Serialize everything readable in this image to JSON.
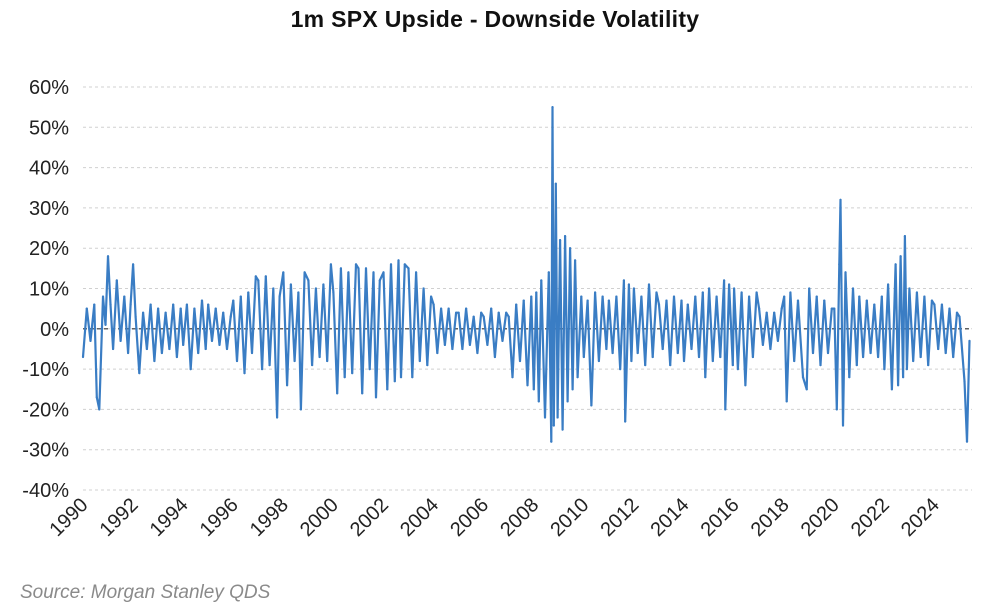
{
  "chart_data": {
    "type": "line",
    "title": "1m SPX Upside - Downside Volatility",
    "source": "Source: Morgan Stanley QDS",
    "xlabel": "",
    "ylabel": "",
    "ylim": [
      -40,
      60
    ],
    "xlim": [
      1990,
      2025.5
    ],
    "y_ticks": [
      60,
      50,
      40,
      30,
      20,
      10,
      0,
      -10,
      -20,
      -30,
      -40
    ],
    "y_tick_labels": [
      "60%",
      "50%",
      "40%",
      "30%",
      "20%",
      "10%",
      "0%",
      "-10%",
      "-20%",
      "-30%",
      "-40%"
    ],
    "x_ticks": [
      1990,
      1992,
      1994,
      1996,
      1998,
      2000,
      2002,
      2004,
      2006,
      2008,
      2010,
      2012,
      2014,
      2016,
      2018,
      2020,
      2022,
      2024
    ],
    "x_tick_labels": [
      "1990",
      "1992",
      "1994",
      "1996",
      "1998",
      "2000",
      "2002",
      "2004",
      "2006",
      "2008",
      "2010",
      "2012",
      "2014",
      "2016",
      "2018",
      "2020",
      "2022",
      "2024"
    ],
    "grid": true,
    "series": [
      {
        "name": "1m SPX Upside - Downside Volatility",
        "color": "#3a7dc4",
        "points": [
          [
            1990.0,
            -7
          ],
          [
            1990.15,
            5
          ],
          [
            1990.3,
            -3
          ],
          [
            1990.45,
            6
          ],
          [
            1990.55,
            -17
          ],
          [
            1990.65,
            -20
          ],
          [
            1990.8,
            8
          ],
          [
            1990.9,
            1
          ],
          [
            1991.0,
            18
          ],
          [
            1991.1,
            6
          ],
          [
            1991.2,
            -5
          ],
          [
            1991.35,
            12
          ],
          [
            1991.5,
            -3
          ],
          [
            1991.65,
            8
          ],
          [
            1991.8,
            -6
          ],
          [
            1991.9,
            6
          ],
          [
            1992.0,
            16
          ],
          [
            1992.1,
            3
          ],
          [
            1992.25,
            -11
          ],
          [
            1992.4,
            4
          ],
          [
            1992.55,
            -5
          ],
          [
            1992.7,
            6
          ],
          [
            1992.85,
            -8
          ],
          [
            1993.0,
            5
          ],
          [
            1993.15,
            -6
          ],
          [
            1993.3,
            4
          ],
          [
            1993.45,
            -5
          ],
          [
            1993.6,
            6
          ],
          [
            1993.75,
            -7
          ],
          [
            1993.9,
            5
          ],
          [
            1994.0,
            -4
          ],
          [
            1994.15,
            6
          ],
          [
            1994.3,
            -10
          ],
          [
            1994.45,
            5
          ],
          [
            1994.6,
            -6
          ],
          [
            1994.75,
            7
          ],
          [
            1994.9,
            -5
          ],
          [
            1995.0,
            6
          ],
          [
            1995.15,
            -3
          ],
          [
            1995.3,
            5
          ],
          [
            1995.45,
            -4
          ],
          [
            1995.6,
            4
          ],
          [
            1995.75,
            -5
          ],
          [
            1995.9,
            3
          ],
          [
            1996.0,
            7
          ],
          [
            1996.15,
            -8
          ],
          [
            1996.3,
            8
          ],
          [
            1996.45,
            -11
          ],
          [
            1996.6,
            9
          ],
          [
            1996.75,
            -6
          ],
          [
            1996.9,
            13
          ],
          [
            1997.0,
            12
          ],
          [
            1997.15,
            -10
          ],
          [
            1997.3,
            13
          ],
          [
            1997.45,
            -9
          ],
          [
            1997.6,
            10
          ],
          [
            1997.75,
            -22
          ],
          [
            1997.85,
            8
          ],
          [
            1998.0,
            14
          ],
          [
            1998.15,
            -14
          ],
          [
            1998.3,
            11
          ],
          [
            1998.45,
            -8
          ],
          [
            1998.6,
            9
          ],
          [
            1998.7,
            -20
          ],
          [
            1998.85,
            14
          ],
          [
            1999.0,
            12
          ],
          [
            1999.15,
            -9
          ],
          [
            1999.3,
            10
          ],
          [
            1999.45,
            -7
          ],
          [
            1999.6,
            11
          ],
          [
            1999.75,
            -8
          ],
          [
            1999.9,
            16
          ],
          [
            2000.0,
            9
          ],
          [
            2000.15,
            -16
          ],
          [
            2000.3,
            15
          ],
          [
            2000.45,
            -12
          ],
          [
            2000.6,
            14
          ],
          [
            2000.75,
            -11
          ],
          [
            2000.9,
            16
          ],
          [
            2001.0,
            15
          ],
          [
            2001.15,
            -16
          ],
          [
            2001.3,
            15
          ],
          [
            2001.45,
            -10
          ],
          [
            2001.6,
            14
          ],
          [
            2001.7,
            -17
          ],
          [
            2001.85,
            12
          ],
          [
            2002.0,
            14
          ],
          [
            2002.15,
            -15
          ],
          [
            2002.3,
            16
          ],
          [
            2002.45,
            -13
          ],
          [
            2002.6,
            17
          ],
          [
            2002.7,
            -12
          ],
          [
            2002.85,
            16
          ],
          [
            2003.0,
            15
          ],
          [
            2003.15,
            -12
          ],
          [
            2003.3,
            14
          ],
          [
            2003.45,
            -8
          ],
          [
            2003.6,
            10
          ],
          [
            2003.75,
            -9
          ],
          [
            2003.9,
            8
          ],
          [
            2004.0,
            6
          ],
          [
            2004.15,
            -6
          ],
          [
            2004.3,
            5
          ],
          [
            2004.45,
            -4
          ],
          [
            2004.6,
            5
          ],
          [
            2004.75,
            -5
          ],
          [
            2004.9,
            4
          ],
          [
            2005.0,
            4
          ],
          [
            2005.15,
            -5
          ],
          [
            2005.3,
            5
          ],
          [
            2005.45,
            -4
          ],
          [
            2005.6,
            3
          ],
          [
            2005.75,
            -6
          ],
          [
            2005.9,
            4
          ],
          [
            2006.0,
            3
          ],
          [
            2006.15,
            -4
          ],
          [
            2006.3,
            5
          ],
          [
            2006.45,
            -7
          ],
          [
            2006.6,
            4
          ],
          [
            2006.75,
            -3
          ],
          [
            2006.9,
            4
          ],
          [
            2007.0,
            3
          ],
          [
            2007.15,
            -12
          ],
          [
            2007.3,
            6
          ],
          [
            2007.45,
            -8
          ],
          [
            2007.6,
            7
          ],
          [
            2007.75,
            -14
          ],
          [
            2007.9,
            8
          ],
          [
            2008.0,
            -15
          ],
          [
            2008.1,
            9
          ],
          [
            2008.2,
            -18
          ],
          [
            2008.3,
            12
          ],
          [
            2008.45,
            -22
          ],
          [
            2008.6,
            14
          ],
          [
            2008.7,
            -28
          ],
          [
            2008.75,
            55
          ],
          [
            2008.8,
            -24
          ],
          [
            2008.88,
            36
          ],
          [
            2008.95,
            -22
          ],
          [
            2009.05,
            22
          ],
          [
            2009.15,
            -25
          ],
          [
            2009.25,
            23
          ],
          [
            2009.35,
            -18
          ],
          [
            2009.45,
            20
          ],
          [
            2009.55,
            -15
          ],
          [
            2009.65,
            17
          ],
          [
            2009.75,
            -12
          ],
          [
            2009.9,
            8
          ],
          [
            2010.0,
            -7
          ],
          [
            2010.15,
            7
          ],
          [
            2010.3,
            -19
          ],
          [
            2010.45,
            9
          ],
          [
            2010.6,
            -8
          ],
          [
            2010.75,
            8
          ],
          [
            2010.9,
            -5
          ],
          [
            2011.0,
            7
          ],
          [
            2011.15,
            -6
          ],
          [
            2011.3,
            8
          ],
          [
            2011.45,
            -10
          ],
          [
            2011.6,
            12
          ],
          [
            2011.65,
            -23
          ],
          [
            2011.8,
            11
          ],
          [
            2011.9,
            -8
          ],
          [
            2012.0,
            10
          ],
          [
            2012.15,
            -6
          ],
          [
            2012.3,
            8
          ],
          [
            2012.45,
            -9
          ],
          [
            2012.6,
            11
          ],
          [
            2012.75,
            -7
          ],
          [
            2012.9,
            9
          ],
          [
            2013.0,
            6
          ],
          [
            2013.15,
            -5
          ],
          [
            2013.3,
            7
          ],
          [
            2013.45,
            -9
          ],
          [
            2013.6,
            8
          ],
          [
            2013.75,
            -6
          ],
          [
            2013.9,
            7
          ],
          [
            2014.0,
            -8
          ],
          [
            2014.15,
            6
          ],
          [
            2014.3,
            -5
          ],
          [
            2014.45,
            8
          ],
          [
            2014.6,
            -7
          ],
          [
            2014.75,
            9
          ],
          [
            2014.85,
            -12
          ],
          [
            2015.0,
            10
          ],
          [
            2015.15,
            -8
          ],
          [
            2015.3,
            8
          ],
          [
            2015.45,
            -7
          ],
          [
            2015.6,
            12
          ],
          [
            2015.65,
            -20
          ],
          [
            2015.8,
            11
          ],
          [
            2015.95,
            -9
          ],
          [
            2016.0,
            10
          ],
          [
            2016.15,
            -10
          ],
          [
            2016.3,
            9
          ],
          [
            2016.45,
            -14
          ],
          [
            2016.6,
            8
          ],
          [
            2016.75,
            -7
          ],
          [
            2016.9,
            9
          ],
          [
            2017.0,
            5
          ],
          [
            2017.15,
            -4
          ],
          [
            2017.3,
            4
          ],
          [
            2017.45,
            -5
          ],
          [
            2017.6,
            4
          ],
          [
            2017.75,
            -3
          ],
          [
            2017.9,
            5
          ],
          [
            2018.0,
            8
          ],
          [
            2018.1,
            -18
          ],
          [
            2018.25,
            9
          ],
          [
            2018.4,
            -8
          ],
          [
            2018.55,
            7
          ],
          [
            2018.75,
            -12
          ],
          [
            2018.9,
            -15
          ],
          [
            2019.0,
            10
          ],
          [
            2019.15,
            -6
          ],
          [
            2019.3,
            8
          ],
          [
            2019.45,
            -9
          ],
          [
            2019.6,
            7
          ],
          [
            2019.75,
            -6
          ],
          [
            2019.9,
            5
          ],
          [
            2020.0,
            5
          ],
          [
            2020.1,
            -20
          ],
          [
            2020.2,
            16
          ],
          [
            2020.25,
            32
          ],
          [
            2020.35,
            -24
          ],
          [
            2020.45,
            14
          ],
          [
            2020.6,
            -12
          ],
          [
            2020.75,
            10
          ],
          [
            2020.9,
            -9
          ],
          [
            2021.0,
            8
          ],
          [
            2021.15,
            -7
          ],
          [
            2021.3,
            7
          ],
          [
            2021.45,
            -6
          ],
          [
            2021.6,
            6
          ],
          [
            2021.75,
            -7
          ],
          [
            2021.9,
            8
          ],
          [
            2022.0,
            -10
          ],
          [
            2022.15,
            11
          ],
          [
            2022.3,
            -15
          ],
          [
            2022.45,
            16
          ],
          [
            2022.55,
            -14
          ],
          [
            2022.65,
            18
          ],
          [
            2022.75,
            -12
          ],
          [
            2022.82,
            23
          ],
          [
            2022.9,
            -10
          ],
          [
            2023.0,
            10
          ],
          [
            2023.15,
            -8
          ],
          [
            2023.3,
            9
          ],
          [
            2023.45,
            -7
          ],
          [
            2023.6,
            8
          ],
          [
            2023.75,
            -9
          ],
          [
            2023.9,
            7
          ],
          [
            2024.0,
            6
          ],
          [
            2024.15,
            -5
          ],
          [
            2024.3,
            6
          ],
          [
            2024.45,
            -6
          ],
          [
            2024.6,
            5
          ],
          [
            2024.75,
            -7
          ],
          [
            2024.9,
            4
          ],
          [
            2025.0,
            3
          ],
          [
            2025.1,
            -5
          ],
          [
            2025.2,
            -13
          ],
          [
            2025.3,
            -28
          ],
          [
            2025.4,
            -3
          ]
        ]
      }
    ]
  }
}
